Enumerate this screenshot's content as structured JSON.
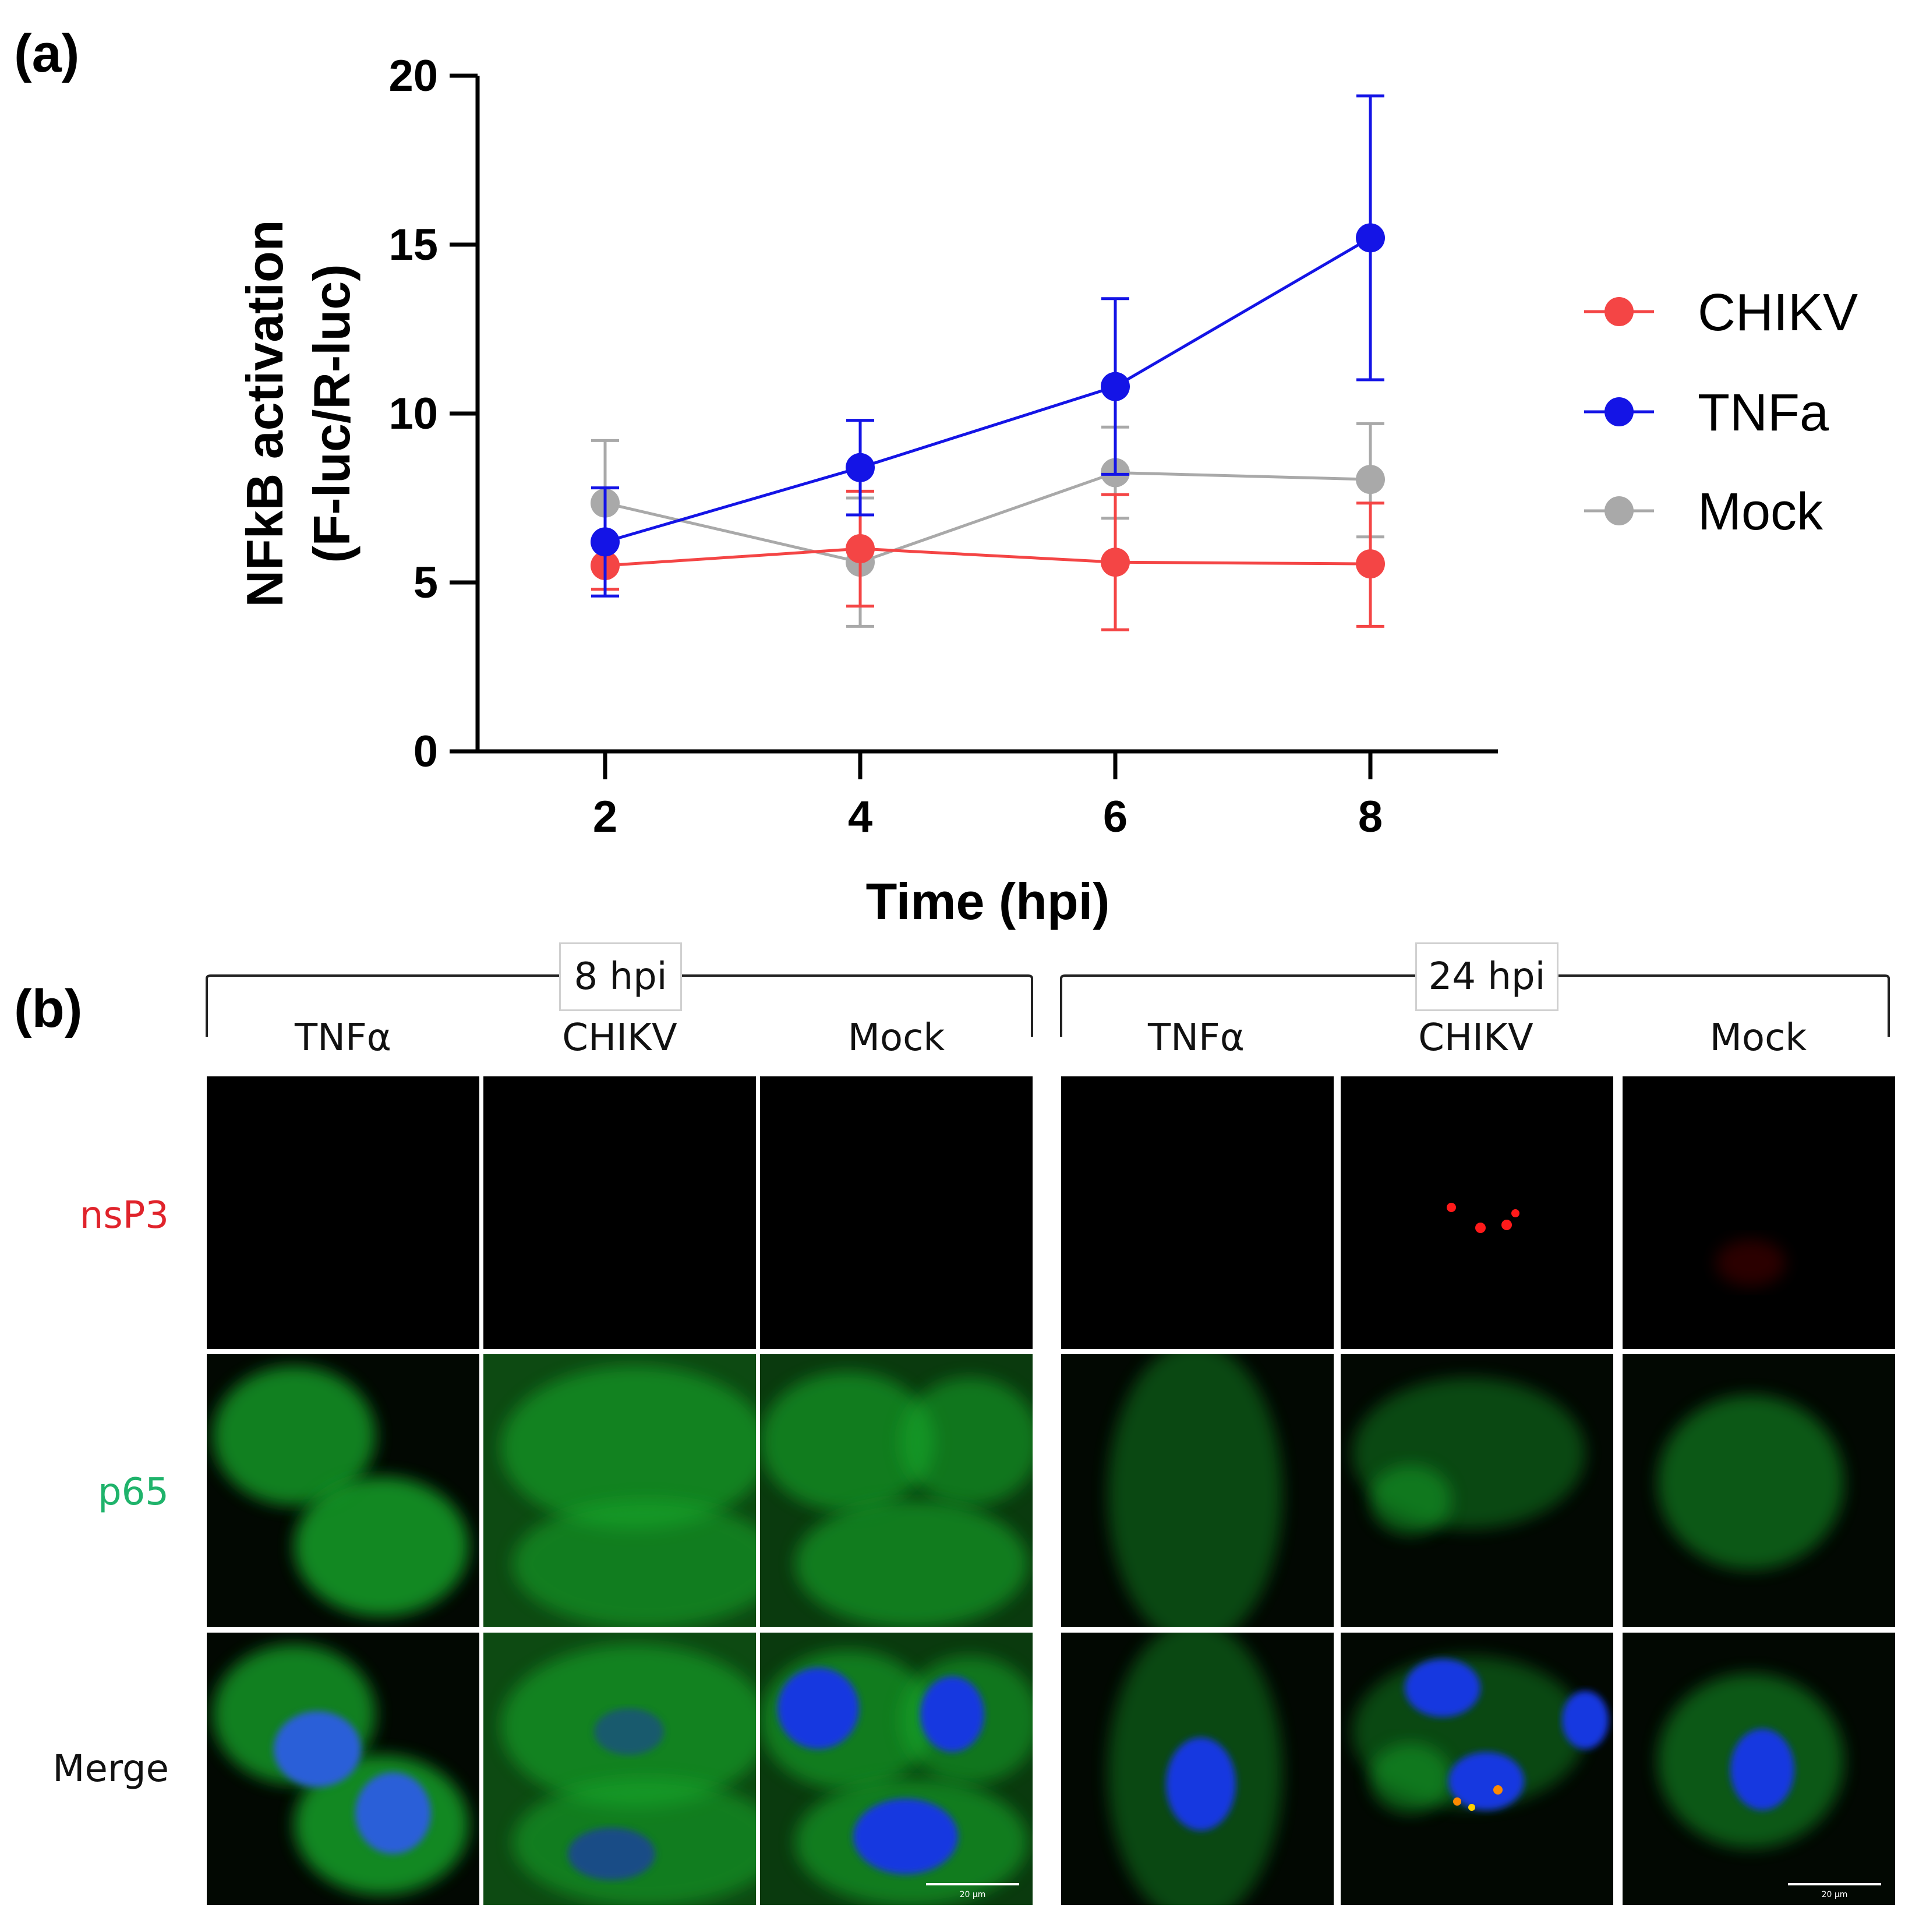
{
  "panel_a": {
    "letter": "(a)",
    "chart_data": {
      "type": "line",
      "title": "",
      "xlabel": "Time (hpi)",
      "ylabel_line1": "NFkB activation",
      "ylabel_line2": "(F-luc/R-luc)",
      "x": [
        2,
        4,
        6,
        8
      ],
      "x_ticks": [
        "2",
        "4",
        "6",
        "8"
      ],
      "y_ticks": [
        "0",
        "5",
        "10",
        "15",
        "20"
      ],
      "ylim": [
        0,
        20
      ],
      "xlim": [
        1,
        9
      ],
      "legend_position": "right",
      "grid": false,
      "series": [
        {
          "name": "CHIKV",
          "color": "#f44545",
          "values": [
            5.5,
            6.0,
            5.6,
            5.55
          ],
          "err_low": [
            4.8,
            4.3,
            3.6,
            3.7
          ],
          "err_high": [
            6.2,
            7.7,
            7.6,
            7.35
          ]
        },
        {
          "name": "TNFa",
          "color": "#1414e6",
          "values": [
            6.2,
            8.4,
            10.8,
            15.2
          ],
          "err_low": [
            4.6,
            7.0,
            8.2,
            11.0
          ],
          "err_high": [
            7.8,
            9.8,
            13.4,
            19.4
          ]
        },
        {
          "name": "Mock",
          "color": "#a9a9a9",
          "values": [
            7.35,
            5.6,
            8.25,
            8.05
          ],
          "err_low": [
            5.5,
            3.7,
            6.9,
            6.35
          ],
          "err_high": [
            9.2,
            7.5,
            9.6,
            9.7
          ]
        }
      ]
    }
  },
  "panel_b": {
    "letter": "(b)",
    "groups": [
      {
        "label": "8 hpi",
        "columns": [
          "TNFα",
          "CHIKV",
          "Mock"
        ]
      },
      {
        "label": "24 hpi",
        "columns": [
          "TNFα",
          "CHIKV",
          "Mock"
        ]
      }
    ],
    "rows": [
      {
        "label": "nsP3",
        "color": "#e0232b"
      },
      {
        "label": "p65",
        "color": "#1fb36b"
      },
      {
        "label": "Merge",
        "color": "#111111"
      }
    ],
    "scale_bar": "20 µm"
  }
}
